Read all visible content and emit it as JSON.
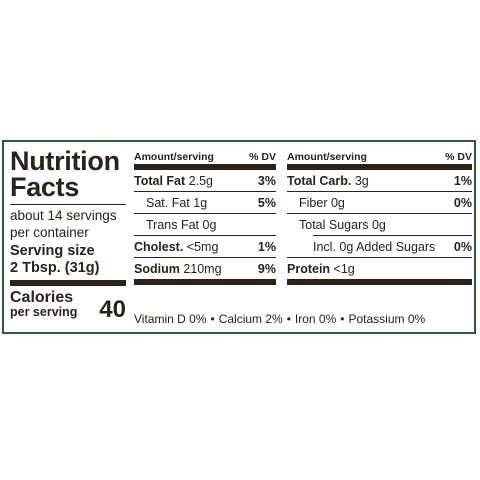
{
  "title_line1": "Nutrition",
  "title_line2": "Facts",
  "servings_line1": "about 14 servings",
  "servings_line2": "per container",
  "serving_size_label": "Serving size",
  "serving_size_value": "2 Tbsp. (31g)",
  "calories_label": "Calories",
  "calories_sub": "per serving",
  "calories_value": "40",
  "header_amount": "Amount/serving",
  "header_dv": "% DV",
  "col1": [
    {
      "name": "Total Fat",
      "amount": "2.5g",
      "dv": "3%"
    },
    {
      "name": "Sat. Fat",
      "amount": "1g",
      "dv": "5%"
    },
    {
      "name": "Trans Fat",
      "amount": "0g",
      "dv": ""
    },
    {
      "name": "Cholest.",
      "amount": "<5mg",
      "dv": "1%"
    },
    {
      "name": "Sodium",
      "amount": "210mg",
      "dv": "9%"
    }
  ],
  "col2": [
    {
      "name": "Total Carb.",
      "amount": "3g",
      "dv": "1%"
    },
    {
      "name": "Fiber",
      "amount": "0g",
      "dv": "0%"
    },
    {
      "name": "Total Sugars",
      "amount": "0g",
      "dv": ""
    },
    {
      "name": "Incl. 0g Added Sugars",
      "amount": "",
      "dv": "0%"
    },
    {
      "name": "Protein",
      "amount": "<1g",
      "dv": ""
    }
  ],
  "vitamins": [
    "Vitamin D 0%",
    "Calcium 2%",
    "Iron 0%",
    "Potassium 0%"
  ],
  "separator": "•"
}
